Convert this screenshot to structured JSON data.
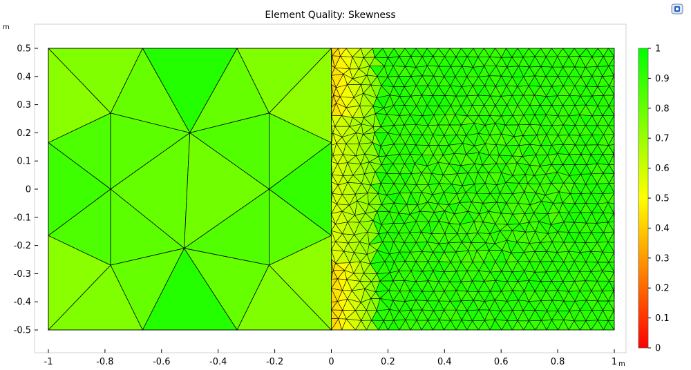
{
  "chart_data": {
    "type": "heatmap",
    "title": "Element Quality: Skewness",
    "xunit": "m",
    "yunit": "m",
    "xlim": [
      -1.02,
      1.02
    ],
    "ylim": [
      -0.58,
      0.58
    ],
    "domain": {
      "x": [
        -1,
        1
      ],
      "y": [
        -0.5,
        0.5
      ]
    },
    "xticks": [
      -1,
      -0.8,
      -0.6,
      -0.4,
      -0.2,
      0,
      0.2,
      0.4,
      0.6,
      0.8,
      1
    ],
    "xtick_labels": [
      "-1",
      "-0.8",
      "-0.6",
      "-0.4",
      "-0.2",
      "0",
      "0.2",
      "0.4",
      "0.6",
      "0.8",
      "1"
    ],
    "yticks": [
      0.5,
      0.4,
      0.3,
      0.2,
      0.1,
      0,
      -0.1,
      -0.2,
      -0.3,
      -0.4,
      -0.5
    ],
    "ytick_labels": [
      "0.5",
      "0.4",
      "0.3",
      "0.2",
      "0.1",
      "0",
      "-0.1",
      "-0.2",
      "-0.3",
      "-0.4",
      "-0.5"
    ],
    "colorbar": {
      "range": [
        0,
        1
      ],
      "ticks": [
        0,
        0.1,
        0.2,
        0.3,
        0.4,
        0.5,
        0.6,
        0.7,
        0.8,
        0.9,
        1
      ],
      "tick_labels": [
        "0",
        "0.1",
        "0.2",
        "0.3",
        "0.4",
        "0.5",
        "0.6",
        "0.7",
        "0.8",
        "0.9",
        "1"
      ],
      "stops": [
        {
          "v": 0,
          "color": "#ff0000"
        },
        {
          "v": 0.25,
          "color": "#ff8000"
        },
        {
          "v": 0.5,
          "color": "#ffff00"
        },
        {
          "v": 0.75,
          "color": "#80ff00"
        },
        {
          "v": 1,
          "color": "#00ff00"
        }
      ]
    },
    "nodes": {
      "C1": [
        -0.78,
        0.27
      ],
      "C2": [
        -0.5,
        0.2
      ],
      "C3": [
        -0.22,
        0.27
      ],
      "M1": [
        -0.78,
        0.0
      ],
      "M2": [
        -0.22,
        0.0
      ],
      "D1": [
        -0.78,
        -0.27
      ],
      "D2": [
        -0.52,
        -0.21
      ],
      "D3": [
        -0.22,
        -0.27
      ],
      "L1": [
        -1,
        0.5
      ],
      "L2": [
        -0.667,
        0.5
      ],
      "L3": [
        -0.333,
        0.5
      ],
      "L4": [
        0,
        0.5
      ],
      "L5": [
        -1,
        -0.5
      ],
      "L6": [
        -0.667,
        -0.5
      ],
      "L7": [
        -0.333,
        -0.5
      ],
      "L8": [
        0,
        -0.5
      ],
      "LE1": [
        -1,
        0.165
      ],
      "LE2": [
        -1,
        -0.165
      ],
      "RE1": [
        0,
        0.165
      ],
      "RE2": [
        0,
        -0.165
      ]
    },
    "coarse_elements": [
      {
        "nodes": [
          "L1",
          "L2",
          "C1"
        ],
        "q": 0.75
      },
      {
        "nodes": [
          "L1",
          "C1",
          "LE1"
        ],
        "q": 0.73
      },
      {
        "nodes": [
          "L2",
          "L3",
          "C2"
        ],
        "q": 0.93
      },
      {
        "nodes": [
          "L2",
          "C2",
          "C1"
        ],
        "q": 0.8
      },
      {
        "nodes": [
          "L3",
          "C3",
          "C2"
        ],
        "q": 0.8
      },
      {
        "nodes": [
          "L3",
          "L4",
          "C3"
        ],
        "q": 0.75
      },
      {
        "nodes": [
          "L4",
          "RE1",
          "C3"
        ],
        "q": 0.72
      },
      {
        "nodes": [
          "LE1",
          "C1",
          "M1"
        ],
        "q": 0.85
      },
      {
        "nodes": [
          "C1",
          "C2",
          "M1"
        ],
        "q": 0.82
      },
      {
        "nodes": [
          "C2",
          "C3",
          "M2"
        ],
        "q": 0.84
      },
      {
        "nodes": [
          "C3",
          "RE1",
          "M2"
        ],
        "q": 0.82
      },
      {
        "nodes": [
          "C2",
          "M1",
          "D2"
        ],
        "q": 0.8
      },
      {
        "nodes": [
          "C2",
          "M2",
          "D2"
        ],
        "q": 0.78
      },
      {
        "nodes": [
          "LE1",
          "M1",
          "LE2"
        ],
        "q": 0.88
      },
      {
        "nodes": [
          "RE1",
          "M2",
          "RE2"
        ],
        "q": 0.9
      },
      {
        "nodes": [
          "LE2",
          "M1",
          "D1"
        ],
        "q": 0.85
      },
      {
        "nodes": [
          "M1",
          "D1",
          "D2"
        ],
        "q": 0.82
      },
      {
        "nodes": [
          "M2",
          "D2",
          "D3"
        ],
        "q": 0.84
      },
      {
        "nodes": [
          "M2",
          "RE2",
          "D3"
        ],
        "q": 0.82
      },
      {
        "nodes": [
          "LE2",
          "D1",
          "L5"
        ],
        "q": 0.73
      },
      {
        "nodes": [
          "L5",
          "D1",
          "L6"
        ],
        "q": 0.75
      },
      {
        "nodes": [
          "D1",
          "D2",
          "L6"
        ],
        "q": 0.8
      },
      {
        "nodes": [
          "L6",
          "D2",
          "L7"
        ],
        "q": 0.93
      },
      {
        "nodes": [
          "D2",
          "D3",
          "L7"
        ],
        "q": 0.8
      },
      {
        "nodes": [
          "D3",
          "L7",
          "L8"
        ],
        "q": 0.75
      },
      {
        "nodes": [
          "D3",
          "RE2",
          "L8"
        ],
        "q": 0.72
      }
    ],
    "fine_region": {
      "x": [
        0,
        1
      ],
      "y": [
        -0.5,
        0.5
      ],
      "element_size": 0.04,
      "transition_quality": [
        0.3,
        0.75
      ],
      "interior_quality": 0.92
    }
  }
}
